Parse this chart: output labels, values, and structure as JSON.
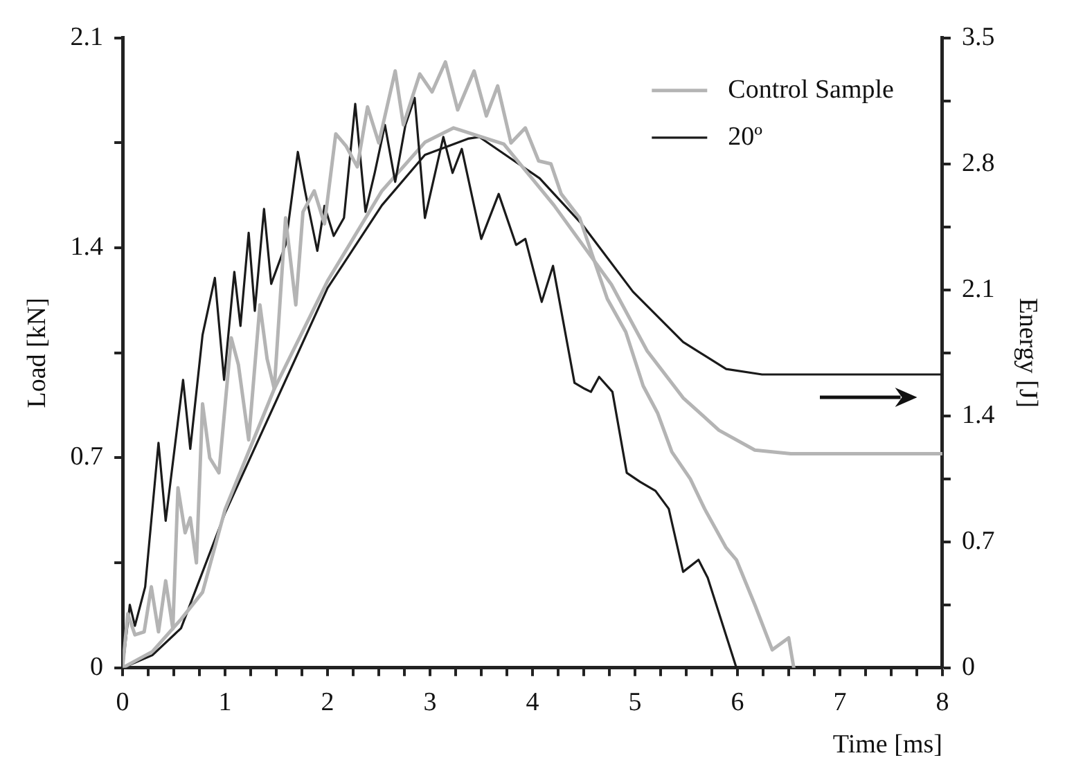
{
  "chart_data": {
    "type": "line",
    "xlabel": "Time [ms]",
    "ylabel": "Load [kN]",
    "y2label": "Energy [J]",
    "legend": "top right",
    "grid": false,
    "marker": "none",
    "line_style": "solid",
    "xlim": [
      0,
      8
    ],
    "xticks": [
      0,
      {
        "value": 0.25,
        "label": null
      },
      {
        "value": 0.5,
        "label": null
      },
      {
        "value": 0.75,
        "label": null
      },
      1,
      {
        "value": 1.25,
        "label": null
      },
      {
        "value": 1.5,
        "label": null
      },
      {
        "value": 1.75,
        "label": null
      },
      2,
      {
        "value": 2.25,
        "label": null
      },
      {
        "value": 2.5,
        "label": null
      },
      {
        "value": 2.75,
        "label": null
      },
      3,
      {
        "value": 3.25,
        "label": null
      },
      {
        "value": 3.5,
        "label": null
      },
      {
        "value": 3.75,
        "label": null
      },
      4,
      {
        "value": 4.25,
        "label": null
      },
      {
        "value": 4.5,
        "label": null
      },
      {
        "value": 4.75,
        "label": null
      },
      5,
      {
        "value": 5.25,
        "label": null
      },
      {
        "value": 5.5,
        "label": null
      },
      {
        "value": 5.75,
        "label": null
      },
      6,
      {
        "value": 6.25,
        "label": null
      },
      {
        "value": 6.5,
        "label": null
      },
      {
        "value": 6.75,
        "label": null
      },
      7,
      {
        "value": 7.25,
        "label": null
      },
      {
        "value": 7.5,
        "label": null
      },
      {
        "value": 7.75,
        "label": null
      },
      8
    ],
    "ylim": [
      0,
      2.1
    ],
    "yticks": [
      0,
      {
        "value": 0.35,
        "label": null
      },
      0.7,
      {
        "value": 1.05,
        "label": null
      },
      1.4,
      {
        "value": 1.75,
        "label": null
      },
      2.1
    ],
    "y2lim": [
      0,
      3.5
    ],
    "y2ticks": [
      0,
      {
        "value": 0.35,
        "label": null
      },
      0.7,
      {
        "value": 1.05,
        "label": null
      },
      1.4,
      {
        "value": 1.75,
        "label": null
      },
      2.1,
      {
        "value": 2.45,
        "label": null
      },
      2.8,
      {
        "value": 3.15,
        "label": null
      },
      3.5
    ],
    "series": [
      {
        "name": "Control Sample",
        "color": "#b4b4b4",
        "x": [
          0,
          0.05,
          0.12,
          0.21,
          0.28,
          0.35,
          0.42,
          0.49,
          0.54,
          0.61,
          0.66,
          0.72,
          0.78,
          0.85,
          0.94,
          1.06,
          1.13,
          1.23,
          1.34,
          1.41,
          1.48,
          1.59,
          1.69,
          1.76,
          1.87,
          1.97,
          2.08,
          2.18,
          2.29,
          2.39,
          2.5,
          2.66,
          2.74,
          2.9,
          3.02,
          3.15,
          3.27,
          3.43,
          3.55,
          3.66,
          3.79,
          3.93,
          4.06,
          4.18,
          4.28,
          4.46,
          4.61,
          4.73,
          4.91,
          5.08,
          5.22,
          5.36,
          5.54,
          5.68,
          5.89,
          5.99,
          6.17,
          6.34,
          6.5,
          6.55
        ],
        "values": [
          0,
          0.18,
          0.11,
          0.12,
          0.27,
          0.12,
          0.29,
          0.13,
          0.6,
          0.45,
          0.5,
          0.35,
          0.88,
          0.7,
          0.65,
          1.1,
          1.01,
          0.76,
          1.21,
          1.03,
          0.93,
          1.5,
          1.21,
          1.52,
          1.59,
          1.48,
          1.78,
          1.74,
          1.67,
          1.87,
          1.75,
          1.99,
          1.81,
          1.98,
          1.92,
          2.02,
          1.86,
          1.99,
          1.84,
          1.94,
          1.75,
          1.8,
          1.69,
          1.68,
          1.58,
          1.5,
          1.35,
          1.23,
          1.12,
          0.94,
          0.85,
          0.72,
          0.63,
          0.53,
          0.4,
          0.36,
          0.21,
          0.06,
          0.1,
          0
        ]
      },
      {
        "name": "20º",
        "color": "#1a1a1a",
        "x": [
          0,
          0.07,
          0.12,
          0.22,
          0.35,
          0.42,
          0.55,
          0.59,
          0.66,
          0.78,
          0.9,
          0.99,
          1.09,
          1.15,
          1.23,
          1.29,
          1.38,
          1.45,
          1.59,
          1.71,
          1.78,
          1.9,
          1.97,
          2.06,
          2.16,
          2.27,
          2.37,
          2.46,
          2.56,
          2.66,
          2.76,
          2.85,
          2.95,
          3.13,
          3.22,
          3.31,
          3.5,
          3.67,
          3.84,
          3.93,
          4.09,
          4.2,
          4.41,
          4.51,
          4.57,
          4.65,
          4.78,
          4.92,
          5.05,
          5.2,
          5.33,
          5.47,
          5.62,
          5.71,
          5.99
        ],
        "values": [
          0,
          0.21,
          0.14,
          0.27,
          0.75,
          0.49,
          0.85,
          0.96,
          0.73,
          1.11,
          1.3,
          0.96,
          1.32,
          1.14,
          1.45,
          1.19,
          1.53,
          1.28,
          1.41,
          1.72,
          1.59,
          1.39,
          1.54,
          1.44,
          1.5,
          1.88,
          1.52,
          1.65,
          1.81,
          1.62,
          1.81,
          1.9,
          1.5,
          1.77,
          1.65,
          1.73,
          1.43,
          1.58,
          1.41,
          1.43,
          1.22,
          1.34,
          0.95,
          0.93,
          0.92,
          0.97,
          0.92,
          0.65,
          0.62,
          0.59,
          0.53,
          0.32,
          0.36,
          0.3,
          0
        ]
      },
      {
        "color": "#b4b4b4",
        "axis": "y2",
        "x": [
          0,
          0.29,
          0.57,
          0.78,
          1.0,
          1.48,
          2.0,
          2.53,
          2.95,
          3.23,
          3.72,
          4.21,
          4.77,
          5.12,
          5.47,
          5.82,
          6.17,
          6.52,
          8
        ],
        "values": [
          0,
          0.09,
          0.27,
          0.42,
          0.88,
          1.55,
          2.15,
          2.65,
          2.92,
          3.0,
          2.91,
          2.57,
          2.13,
          1.76,
          1.5,
          1.32,
          1.21,
          1.19,
          1.19
        ]
      },
      {
        "color": "#1a1a1a",
        "axis": "y2",
        "x": [
          0,
          0.29,
          0.57,
          1.0,
          2.0,
          2.53,
          2.95,
          3.37,
          3.48,
          4.07,
          4.49,
          4.98,
          5.47,
          5.89,
          6.24,
          8
        ],
        "values": [
          0,
          0.07,
          0.22,
          0.86,
          2.11,
          2.57,
          2.85,
          2.94,
          2.95,
          2.72,
          2.46,
          2.09,
          1.81,
          1.66,
          1.63,
          1.63
        ]
      }
    ]
  }
}
